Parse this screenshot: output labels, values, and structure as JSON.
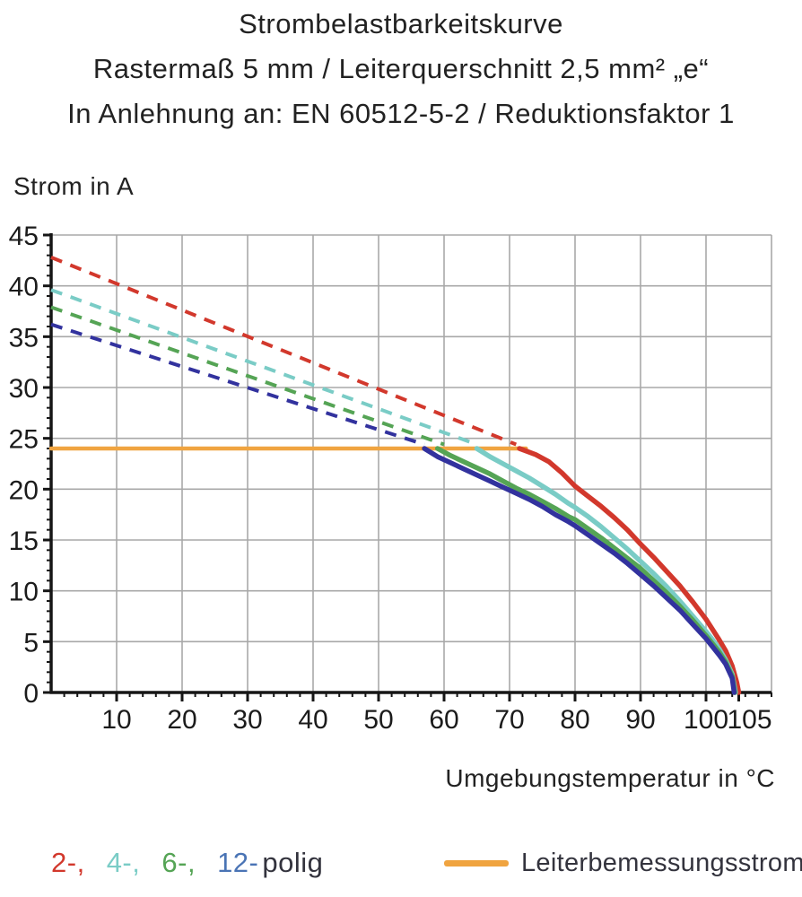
{
  "title": {
    "line1": "Strombelastbarkeitskurve",
    "line2": "Rastermaß 5 mm / Leiterquerschnitt 2,5 mm² „e“",
    "line3": "In Anlehnung an: EN 60512-5-2 / Reduktionsfaktor 1"
  },
  "colors": {
    "red": "#d2382c",
    "cyan": "#7accc6",
    "green": "#55a455",
    "blue": "#32329e",
    "orange": "#f0a440",
    "legend_blue_text": "#4a74b5",
    "legend_dark_text": "#33333d",
    "grid": "#a8a8a8",
    "axis": "#161616"
  },
  "legend": {
    "poles": [
      {
        "label": "2-,",
        "color": "#d2382c",
        "name": "2-polig"
      },
      {
        "label": "4-,",
        "color": "#7accc6",
        "name": "4-polig"
      },
      {
        "label": "6-,",
        "color": "#55a455",
        "name": "6-polig"
      },
      {
        "label": "12-",
        "color": "#4a74b5",
        "name": "12-polig"
      }
    ],
    "poles_suffix": "polig",
    "rated": {
      "label": "Leiterbemessungsstrom",
      "color": "#f0a440"
    }
  },
  "chart_data": {
    "type": "line",
    "title": "Strombelastbarkeitskurve",
    "xlabel": "Umgebungstemperatur in °C",
    "ylabel": "Strom in A",
    "xlim": [
      0,
      110
    ],
    "ylim": [
      0,
      45
    ],
    "x_major_ticks": [
      10,
      20,
      30,
      40,
      50,
      60,
      70,
      80,
      90,
      100,
      105
    ],
    "x_minor_step": 2,
    "y_major_ticks": [
      0,
      5,
      10,
      15,
      20,
      25,
      30,
      35,
      40,
      45
    ],
    "y_minor_step": 1,
    "grid": {
      "x_step": 10,
      "y_step": 5,
      "on": true
    },
    "legend_position": "bottom",
    "series": [
      {
        "name": "2-polig",
        "color": "#d2382c",
        "dashed": [
          [
            0,
            42.8
          ],
          [
            71,
            24.4
          ]
        ],
        "solid": [
          [
            71.5,
            24
          ],
          [
            74,
            23.4
          ],
          [
            76,
            22.7
          ],
          [
            78,
            21.6
          ],
          [
            80,
            20.3
          ],
          [
            82,
            19.3
          ],
          [
            84,
            18.3
          ],
          [
            86,
            17.2
          ],
          [
            88,
            16.0
          ],
          [
            90,
            14.6
          ],
          [
            92,
            13.3
          ],
          [
            94,
            11.9
          ],
          [
            96,
            10.5
          ],
          [
            98,
            8.9
          ],
          [
            100,
            7.2
          ],
          [
            101,
            6.2
          ],
          [
            102,
            5.2
          ],
          [
            103,
            4.1
          ],
          [
            104,
            2.6
          ],
          [
            104.7,
            1.0
          ],
          [
            105,
            0
          ]
        ]
      },
      {
        "name": "4-polig",
        "color": "#7accc6",
        "dashed": [
          [
            0,
            39.6
          ],
          [
            65,
            24.4
          ]
        ],
        "solid": [
          [
            65,
            24
          ],
          [
            67,
            23.2
          ],
          [
            69,
            22.5
          ],
          [
            71,
            21.8
          ],
          [
            73,
            21.1
          ],
          [
            75,
            20.3
          ],
          [
            77,
            19.5
          ],
          [
            79,
            18.6
          ],
          [
            80,
            18.2
          ],
          [
            82,
            17.3
          ],
          [
            84,
            16.3
          ],
          [
            86,
            15.2
          ],
          [
            88,
            14.1
          ],
          [
            90,
            12.9
          ],
          [
            92,
            11.7
          ],
          [
            94,
            10.4
          ],
          [
            96,
            9.0
          ],
          [
            98,
            7.5
          ],
          [
            100,
            6.0
          ],
          [
            101,
            5.2
          ],
          [
            102,
            4.3
          ],
          [
            103,
            3.2
          ],
          [
            104,
            1.8
          ],
          [
            104.5,
            0
          ]
        ]
      },
      {
        "name": "6-polig",
        "color": "#55a455",
        "dashed": [
          [
            0,
            37.9
          ],
          [
            60,
            24.4
          ]
        ],
        "solid": [
          [
            59,
            24
          ],
          [
            61,
            23.3
          ],
          [
            63,
            22.7
          ],
          [
            65,
            22.1
          ],
          [
            67,
            21.5
          ],
          [
            69,
            20.8
          ],
          [
            71,
            20.1
          ],
          [
            73,
            19.5
          ],
          [
            75,
            18.8
          ],
          [
            77,
            18.1
          ],
          [
            79,
            17.3
          ],
          [
            80,
            17.0
          ],
          [
            82,
            16.1
          ],
          [
            84,
            15.2
          ],
          [
            86,
            14.2
          ],
          [
            88,
            13.2
          ],
          [
            90,
            12.2
          ],
          [
            92,
            11.0
          ],
          [
            94,
            9.8
          ],
          [
            96,
            8.5
          ],
          [
            98,
            7.1
          ],
          [
            100,
            5.6
          ],
          [
            101,
            4.8
          ],
          [
            102,
            4.0
          ],
          [
            103,
            3.0
          ],
          [
            104,
            1.6
          ],
          [
            104.4,
            0
          ]
        ]
      },
      {
        "name": "12-polig",
        "color": "#32329e",
        "dashed": [
          [
            0,
            36.2
          ],
          [
            57,
            24.4
          ]
        ],
        "solid": [
          [
            57,
            24
          ],
          [
            59,
            23.2
          ],
          [
            61,
            22.6
          ],
          [
            63,
            22.0
          ],
          [
            65,
            21.4
          ],
          [
            67,
            20.8
          ],
          [
            69,
            20.2
          ],
          [
            71,
            19.6
          ],
          [
            73,
            19.0
          ],
          [
            75,
            18.3
          ],
          [
            77,
            17.5
          ],
          [
            79,
            16.8
          ],
          [
            80,
            16.4
          ],
          [
            82,
            15.5
          ],
          [
            84,
            14.6
          ],
          [
            86,
            13.7
          ],
          [
            88,
            12.7
          ],
          [
            90,
            11.6
          ],
          [
            92,
            10.5
          ],
          [
            94,
            9.3
          ],
          [
            96,
            8.1
          ],
          [
            98,
            6.7
          ],
          [
            100,
            5.3
          ],
          [
            101,
            4.5
          ],
          [
            102,
            3.7
          ],
          [
            103,
            2.8
          ],
          [
            104,
            1.4
          ],
          [
            104.3,
            0
          ]
        ]
      },
      {
        "name": "Leiterbemessungsstrom",
        "color": "#f0a440",
        "solid": [
          [
            0,
            24
          ],
          [
            72.5,
            24
          ]
        ]
      }
    ]
  }
}
